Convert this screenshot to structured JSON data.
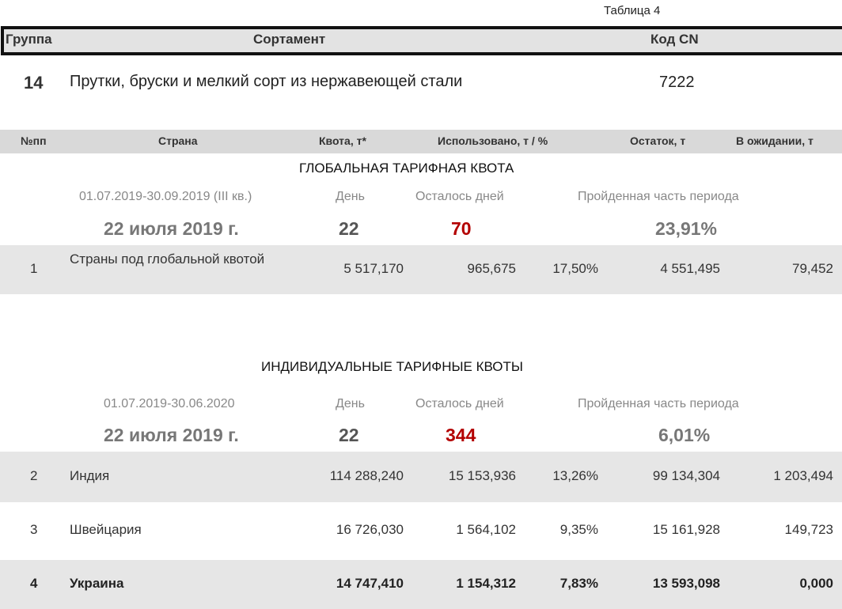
{
  "table_label": "Таблица 4",
  "header": {
    "group": "Группа",
    "assortment": "Сортамент",
    "code": "Код CN"
  },
  "group": {
    "number": "14",
    "description": "Прутки, бруски и мелкий сорт из нержавеющей стали",
    "code": "7222"
  },
  "columns": {
    "num": "№пп",
    "country": "Страна",
    "quota": "Квота, т*",
    "used": "Использовано, т / %",
    "remaining": "Остаток, т",
    "pending": "В ожидании, т"
  },
  "global": {
    "title": "ГЛОБАЛЬНАЯ ТАРИФНАЯ КВОТА",
    "period": "01.07.2019-30.09.2019 (III кв.)",
    "day_label": "День",
    "days_left_label": "Осталось дней",
    "passed_label": "Пройденная часть периода",
    "date": "22 июля 2019 г.",
    "day": "22",
    "days_left": "70",
    "passed": "23,91%",
    "rows": [
      {
        "num": "1",
        "country": "Страны под глобальной квотой",
        "quota": "5 517,170",
        "used": "965,675",
        "pct": "17,50%",
        "remaining": "4 551,495",
        "pending": "79,452"
      }
    ]
  },
  "individual": {
    "title": "ИНДИВИДУАЛЬНЫЕ ТАРИФНЫЕ КВОТЫ",
    "period": "01.07.2019-30.06.2020",
    "day_label": "День",
    "days_left_label": "Осталось дней",
    "passed_label": "Пройденная часть периода",
    "date": "22 июля 2019 г.",
    "day": "22",
    "days_left": "344",
    "passed": "6,01%",
    "rows": [
      {
        "num": "2",
        "country": "Индия",
        "quota": "114 288,240",
        "used": "15 153,936",
        "pct": "13,26%",
        "remaining": "99 134,304",
        "pending": "1 203,494"
      },
      {
        "num": "3",
        "country": "Швейцария",
        "quota": "16 726,030",
        "used": "1 564,102",
        "pct": "9,35%",
        "remaining": "15 161,928",
        "pending": "149,723"
      },
      {
        "num": "4",
        "country": "Украина",
        "quota": "14 747,410",
        "used": "1 154,312",
        "pct": "7,83%",
        "remaining": "13 593,098",
        "pending": "0,000"
      }
    ]
  }
}
